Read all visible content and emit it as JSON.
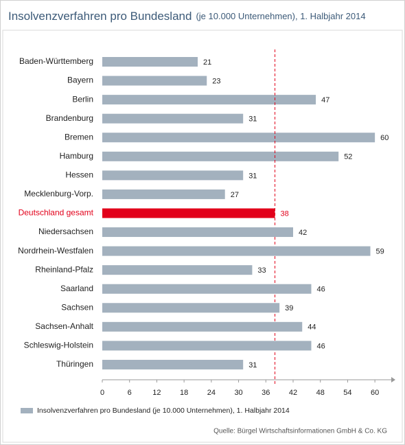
{
  "chart_data": {
    "type": "bar",
    "orientation": "horizontal",
    "title": "Insolvenzverfahren pro Bundesland",
    "subtitle": "(je 10.000 Unternehmen), 1. Halbjahr 2014",
    "categories": [
      "Baden-Württemberg",
      "Bayern",
      "Berlin",
      "Brandenburg",
      "Bremen",
      "Hamburg",
      "Hessen",
      "Mecklenburg-Vorp.",
      "Deutschland gesamt",
      "Niedersachsen",
      "Nordrhein-Westfalen",
      "Rheinland-Pfalz",
      "Saarland",
      "Sachsen",
      "Sachsen-Anhalt",
      "Schleswig-Holstein",
      "Thüringen"
    ],
    "series": [
      {
        "name": "Insolvenzverfahren pro Bundesland (je 10.000 Unternehmen), 1. Halbjahr 2014",
        "color": "#a3b1be",
        "values": [
          21,
          23,
          47,
          31,
          60,
          52,
          31,
          27,
          38,
          42,
          59,
          33,
          46,
          39,
          44,
          46,
          31
        ]
      }
    ],
    "bar_colors": [
      "#a3b1be",
      "#a3b1be",
      "#a3b1be",
      "#a3b1be",
      "#a3b1be",
      "#a3b1be",
      "#a3b1be",
      "#a3b1be",
      "#e2001a",
      "#a3b1be",
      "#a3b1be",
      "#a3b1be",
      "#a3b1be",
      "#a3b1be",
      "#a3b1be",
      "#a3b1be",
      "#a3b1be"
    ],
    "reference_line": {
      "color": "#e2001a",
      "style": "dashed"
    },
    "xlim": [
      0,
      63
    ],
    "xticks": [
      0,
      6,
      12,
      18,
      24,
      30,
      36,
      42,
      48,
      54,
      60
    ],
    "source": "Quelle: Bürgel Wirtschaftsinformationen GmbH & Co. KG"
  }
}
